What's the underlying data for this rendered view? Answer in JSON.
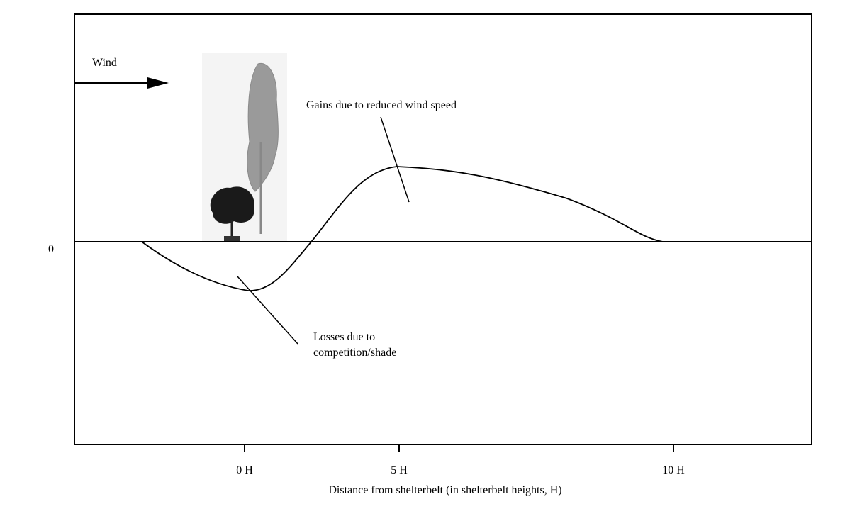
{
  "wind_label": "Wind",
  "annotations": {
    "gains": "Gains due to reduced wind speed",
    "losses": [
      "Losses due to",
      "competition/shade"
    ]
  },
  "y_axis": {
    "zero_label": "0"
  },
  "x_axis": {
    "ticks": [
      "0 H",
      "5 H",
      "10 H"
    ],
    "title": "Distance from shelterbelt (in shelterbelt heights, H)"
  }
}
